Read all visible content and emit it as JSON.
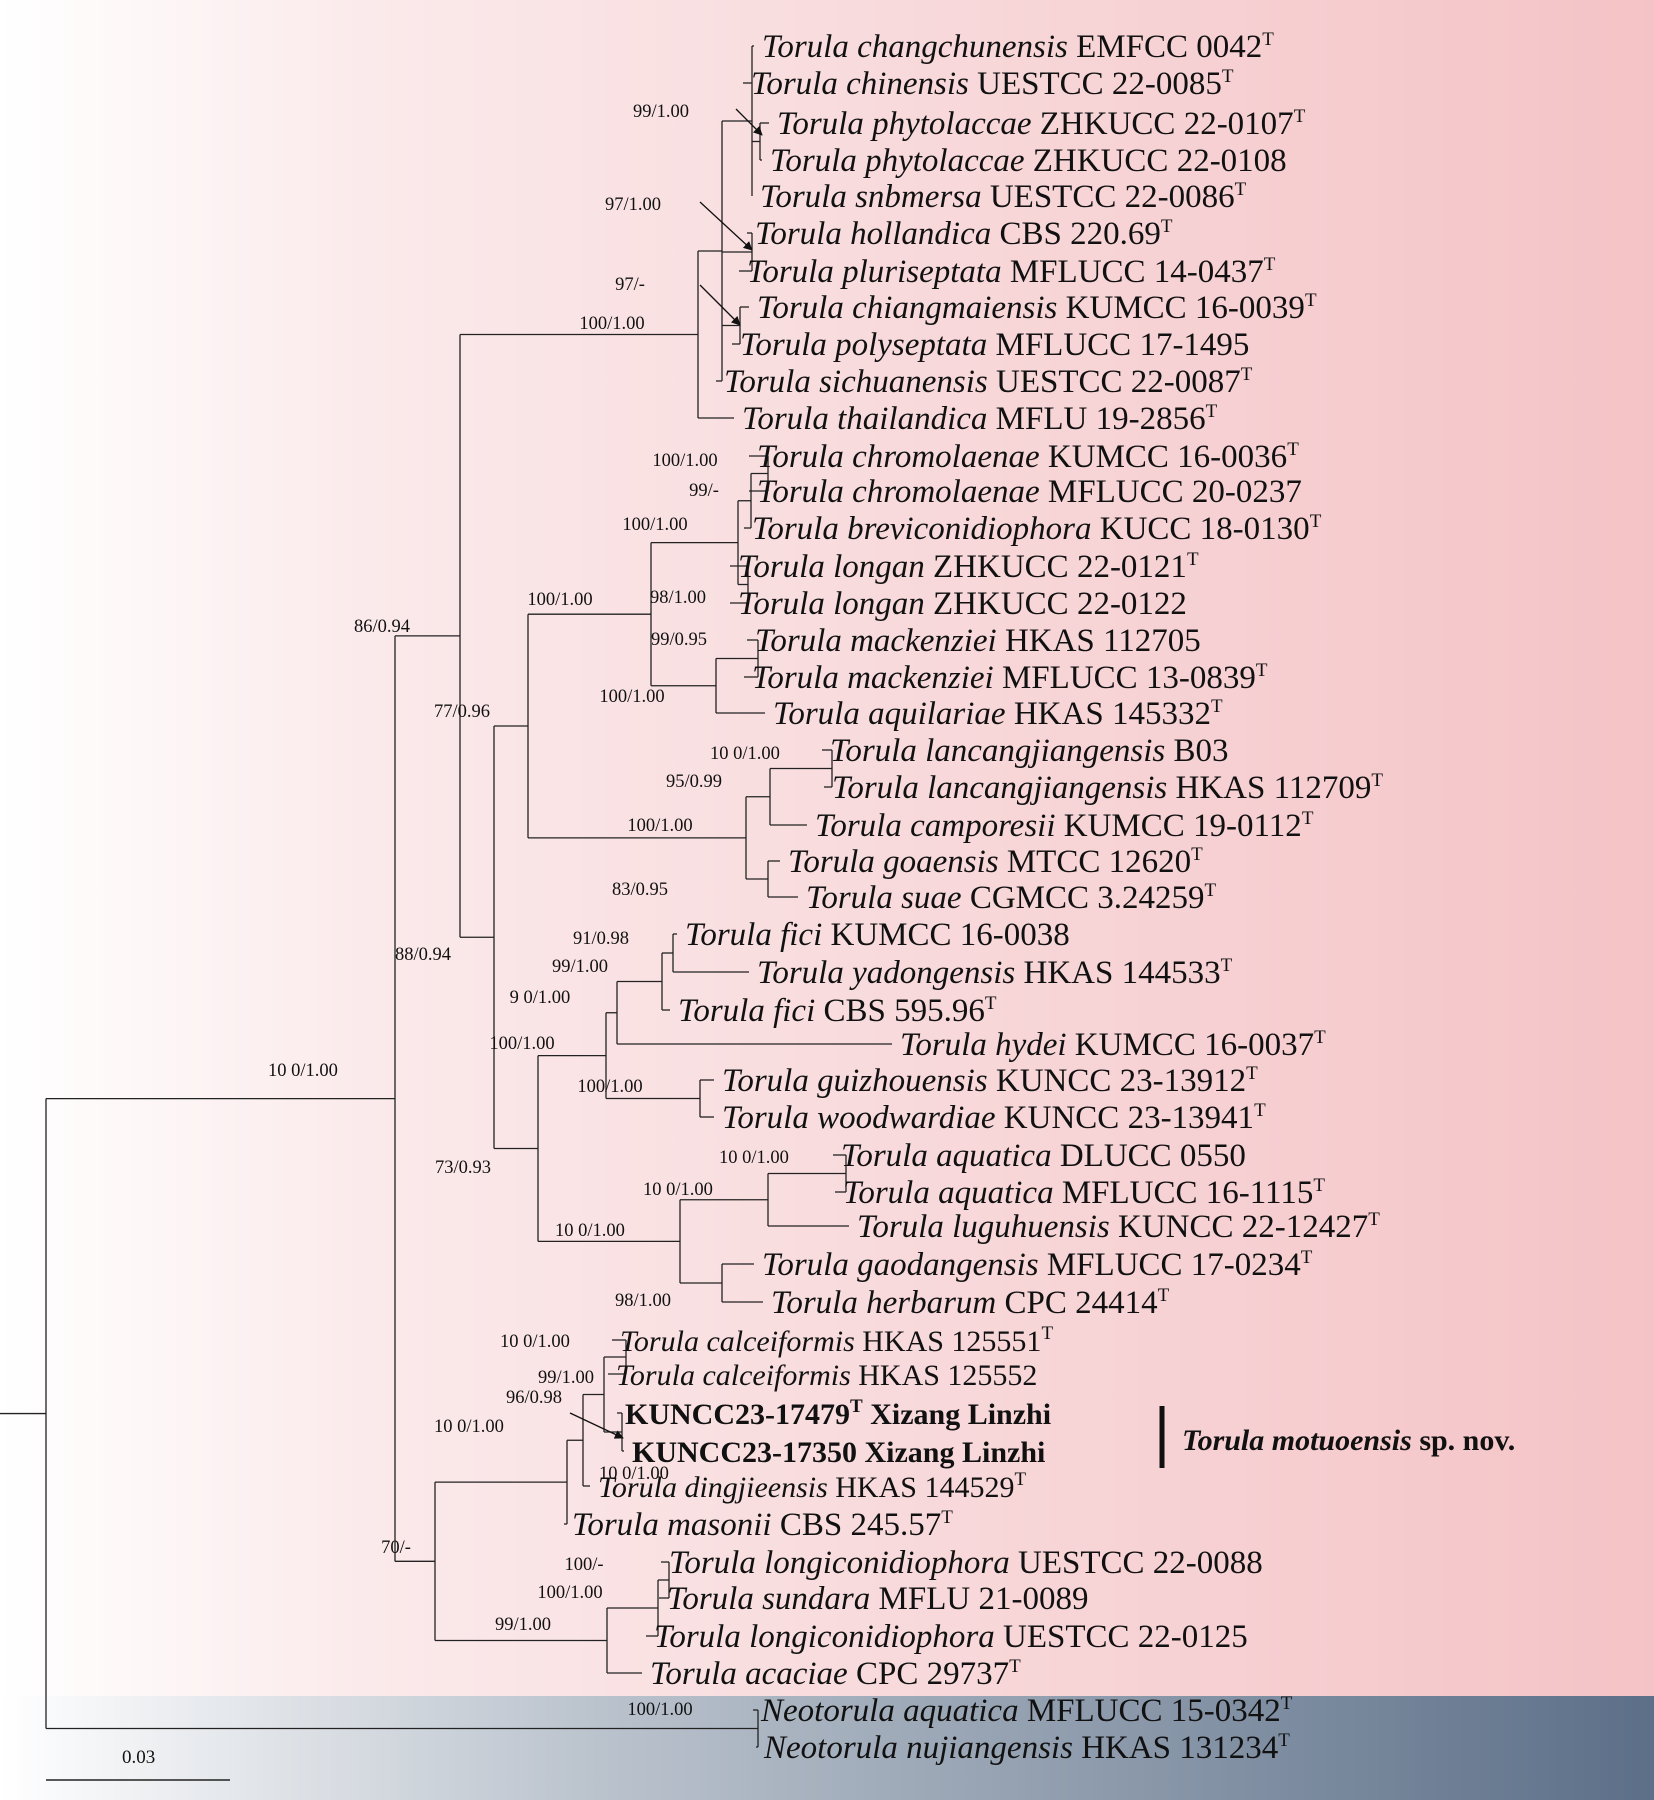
{
  "tips": [
    {
      "genus": "Torula",
      "epithet": "changchunensis",
      "strain": "EMFCC 0042",
      "type": true
    },
    {
      "genus": "Torula",
      "epithet": "chinensis",
      "strain": "UESTCC 22-0085",
      "type": true
    },
    {
      "genus": "Torula",
      "epithet": "phytolaccae",
      "strain": "ZHKUCC 22-0107",
      "type": true
    },
    {
      "genus": "Torula",
      "epithet": "phytolaccae",
      "strain": "ZHKUCC 22-0108",
      "type": false
    },
    {
      "genus": "Torula",
      "epithet": "snbmersa",
      "strain": "UESTCC 22-0086",
      "type": true
    },
    {
      "genus": "Torula",
      "epithet": "hollandica",
      "strain": "CBS 220.69",
      "type": true
    },
    {
      "genus": "Torula",
      "epithet": "pluriseptata",
      "strain": "MFLUCC 14-0437",
      "type": true
    },
    {
      "genus": "Torula",
      "epithet": "chiangmaiensis",
      "strain": "KUMCC 16-0039",
      "type": true
    },
    {
      "genus": "Torula",
      "epithet": "polyseptata",
      "strain": "MFLUCC 17-1495",
      "type": false
    },
    {
      "genus": "Torula",
      "epithet": "sichuanensis",
      "strain": "UESTCC 22-0087",
      "type": true
    },
    {
      "genus": "Torula",
      "epithet": "thailandica",
      "strain": "MFLU 19-2856",
      "type": true
    },
    {
      "genus": "Torula",
      "epithet": "chromolaenae",
      "strain": "KUMCC 16-0036",
      "type": true
    },
    {
      "genus": "Torula",
      "epithet": "chromolaenae",
      "strain": "MFLUCC 20-0237",
      "type": false
    },
    {
      "genus": "Torula",
      "epithet": "breviconidiophora",
      "strain": "KUCC 18-0130",
      "type": true
    },
    {
      "genus": "Torula",
      "epithet": "longan",
      "strain": "ZHKUCC 22-0121",
      "type": true
    },
    {
      "genus": "Torula",
      "epithet": "longan",
      "strain": "ZHKUCC 22-0122",
      "type": false
    },
    {
      "genus": "Torula",
      "epithet": "mackenziei",
      "strain": "HKAS 112705",
      "type": false
    },
    {
      "genus": "Torula",
      "epithet": "mackenziei",
      "strain": "MFLUCC 13-0839",
      "type": true
    },
    {
      "genus": "Torula",
      "epithet": "aquilariae",
      "strain": "HKAS 145332",
      "type": true
    },
    {
      "genus": "Torula",
      "epithet": "lancangjiangensis",
      "strain": "B03",
      "type": false
    },
    {
      "genus": "Torula",
      "epithet": "lancangjiangensis",
      "strain": "HKAS 112709",
      "type": true
    },
    {
      "genus": "Torula",
      "epithet": "camporesii",
      "strain": "KUMCC 19-0112",
      "type": true
    },
    {
      "genus": "Torula",
      "epithet": "goaensis",
      "strain": "MTCC 12620",
      "type": true
    },
    {
      "genus": "Torula",
      "epithet": "suae",
      "strain": "CGMCC 3.24259",
      "type": true
    },
    {
      "genus": "Torula",
      "epithet": "fici",
      "strain": "KUMCC 16-0038",
      "type": false
    },
    {
      "genus": "Torula",
      "epithet": "yadongensis",
      "strain": "HKAS 144533",
      "type": true
    },
    {
      "genus": "Torula",
      "epithet": "fici",
      "strain": "CBS 595.96",
      "type": true
    },
    {
      "genus": "Torula",
      "epithet": "hydei",
      "strain": "KUMCC 16-0037",
      "type": true
    },
    {
      "genus": "Torula",
      "epithet": "guizhouensis",
      "strain": "KUNCC 23-13912",
      "type": true
    },
    {
      "genus": "Torula",
      "epithet": "woodwardiae",
      "strain": "KUNCC 23-13941",
      "type": true
    },
    {
      "genus": "Torula",
      "epithet": "aquatica",
      "strain": "DLUCC 0550",
      "type": false
    },
    {
      "genus": "Torula",
      "epithet": "aquatica",
      "strain": "MFLUCC 16-1115",
      "type": true
    },
    {
      "genus": "Torula",
      "epithet": "luguhuensis",
      "strain": "KUNCC 22-12427",
      "type": true
    },
    {
      "genus": "Torula",
      "epithet": "gaodangensis",
      "strain": "MFLUCC 17-0234",
      "type": true
    },
    {
      "genus": "Torula",
      "epithet": "herbarum",
      "strain": "CPC 24414",
      "type": true
    },
    {
      "genus": "Torula",
      "epithet": "calceiformis",
      "strain": "HKAS 125551",
      "type": true
    },
    {
      "genus": "Torula",
      "epithet": "calceiformis",
      "strain": "HKAS 125552",
      "type": false
    },
    {
      "genus": "",
      "epithet": "",
      "strain": "KUNCC23-17479",
      "type": true,
      "suffix": " Xizang Linzhi",
      "is_new": true
    },
    {
      "genus": "",
      "epithet": "",
      "strain": "KUNCC23-17350 Xizang Linzhi",
      "type": false,
      "is_new": true
    },
    {
      "genus": "Torula",
      "epithet": "dingjieensis",
      "strain": "HKAS 144529",
      "type": true
    },
    {
      "genus": "Torula",
      "epithet": "masonii",
      "strain": "CBS 245.57",
      "type": true
    },
    {
      "genus": "Torula",
      "epithet": "longiconidiophora",
      "strain": "UESTCC 22-0088",
      "type": false
    },
    {
      "genus": "Torula",
      "epithet": "sundara",
      "strain": "MFLU 21-0089",
      "type": false
    },
    {
      "genus": "Torula",
      "epithet": "longiconidiophora",
      "strain": "UESTCC 22-0125",
      "type": false
    },
    {
      "genus": "Torula",
      "epithet": "acaciae",
      "strain": "CPC 29737",
      "type": true
    },
    {
      "genus": "Neotorula",
      "epithet": "aquatica",
      "strain": "MFLUCC 15-0342",
      "type": true
    },
    {
      "genus": "Neotorula",
      "epithet": "nujiangensis",
      "strain": "HKAS 131234",
      "type": true
    }
  ],
  "supports": [
    "99/1.00",
    "97/1.00",
    "97/-",
    "100/1.00",
    "100/1.00",
    "99/-",
    "100/1.00",
    "98/1.00",
    "100/1.00",
    "99/0.95",
    "100/1.00",
    "10 0/1.00",
    "95/0.99",
    "100/1.00",
    "83/0.95",
    "77/0.96",
    "91/0.98",
    "99/1.00",
    "9 0/1.00",
    "100/1.00",
    "100/1.00",
    "10 0/1.00",
    "10 0/1.00",
    "10 0/1.00",
    "98/1.00",
    "73/0.93",
    "88/0.94",
    "86/0.94",
    "10 0/1.00",
    "10 0/1.00",
    "99/1.00",
    "96/0.98",
    "10 0/1.00",
    "100/-",
    "100/1.00",
    "99/1.00",
    "70/-",
    "100/1.00",
    "10 0/1.00"
  ],
  "new_species": {
    "name": "Torula motuoensis",
    "suffix": " sp. nov."
  },
  "type_marker": "T",
  "scale_bar": {
    "value": 0.03,
    "label": "0.03"
  },
  "colors": {
    "clade_torula": "#f4c3c6",
    "clade_neotorula": "#5c6f88",
    "branch": "#222222"
  }
}
